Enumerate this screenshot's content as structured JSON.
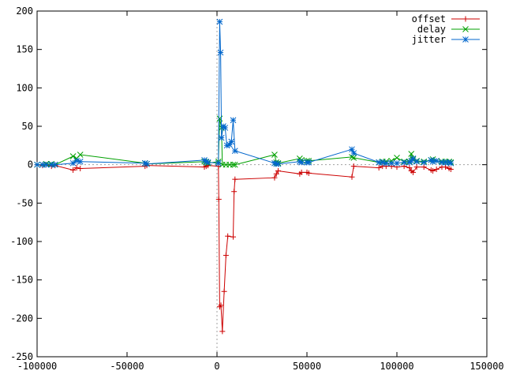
{
  "chart_data": {
    "type": "line",
    "title": "",
    "xlabel": "",
    "ylabel": "",
    "xlim": [
      -100000,
      150000
    ],
    "ylim": [
      -250,
      200
    ],
    "x_ticks": [
      -100000,
      -50000,
      0,
      50000,
      100000,
      150000
    ],
    "y_ticks": [
      -250,
      -200,
      -150,
      -100,
      -50,
      0,
      50,
      100,
      150,
      200
    ],
    "x_tick_labels": [
      "-100000",
      "-50000",
      "0",
      "50000",
      "100000",
      "150000"
    ],
    "y_tick_labels": [
      "-250",
      "-200",
      "-150",
      "-100",
      "-50",
      "0",
      "50",
      "100",
      "150",
      "200"
    ],
    "zero_lines": true,
    "grid": false,
    "legend_position": "top-right",
    "series": [
      {
        "name": "offset",
        "color": "#cc0000",
        "marker": "plus",
        "points": [
          [
            -100000,
            0
          ],
          [
            -97000,
            -1
          ],
          [
            -95000,
            0
          ],
          [
            -92000,
            -2
          ],
          [
            -90000,
            -1
          ],
          [
            -80000,
            -7
          ],
          [
            -78000,
            -4
          ],
          [
            -76000,
            -5
          ],
          [
            -40000,
            -2
          ],
          [
            -39000,
            -1
          ],
          [
            -7000,
            -3
          ],
          [
            -6000,
            -2
          ],
          [
            -5000,
            -1
          ],
          [
            800,
            -2
          ],
          [
            1000,
            -45
          ],
          [
            1500,
            -185
          ],
          [
            2200,
            -183
          ],
          [
            3000,
            -217
          ],
          [
            4000,
            -165
          ],
          [
            5000,
            -118
          ],
          [
            6000,
            -93
          ],
          [
            9000,
            -94
          ],
          [
            9500,
            -35
          ],
          [
            10000,
            -19
          ],
          [
            32000,
            -17
          ],
          [
            33000,
            -12
          ],
          [
            34000,
            -8
          ],
          [
            46000,
            -12
          ],
          [
            47000,
            -10
          ],
          [
            50000,
            -10
          ],
          [
            51000,
            -11
          ],
          [
            75000,
            -16
          ],
          [
            76000,
            -2
          ],
          [
            90000,
            -4
          ],
          [
            92000,
            -2
          ],
          [
            94000,
            -2
          ],
          [
            97000,
            -2
          ],
          [
            100000,
            -3
          ],
          [
            104000,
            -2
          ],
          [
            107000,
            -4
          ],
          [
            108000,
            -8
          ],
          [
            109000,
            -10
          ],
          [
            111000,
            -3
          ],
          [
            115000,
            -3
          ],
          [
            119000,
            -7
          ],
          [
            120000,
            -8
          ],
          [
            122000,
            -6
          ],
          [
            125000,
            -3
          ],
          [
            127000,
            -3
          ],
          [
            129000,
            -5
          ],
          [
            130000,
            -6
          ]
        ]
      },
      {
        "name": "delay",
        "color": "#00a000",
        "marker": "cross",
        "points": [
          [
            -100000,
            0
          ],
          [
            -97000,
            0
          ],
          [
            -95000,
            1
          ],
          [
            -92000,
            1
          ],
          [
            -90000,
            0
          ],
          [
            -80000,
            11
          ],
          [
            -78000,
            8
          ],
          [
            -76000,
            13
          ],
          [
            -40000,
            2
          ],
          [
            -39000,
            1
          ],
          [
            -7000,
            4
          ],
          [
            -6000,
            3
          ],
          [
            -5000,
            2
          ],
          [
            800,
            4
          ],
          [
            1500,
            60
          ],
          [
            2500,
            48
          ],
          [
            3000,
            0
          ],
          [
            5000,
            0
          ],
          [
            7000,
            0
          ],
          [
            9000,
            0
          ],
          [
            10000,
            0
          ],
          [
            32000,
            13
          ],
          [
            33000,
            3
          ],
          [
            34000,
            2
          ],
          [
            46000,
            8
          ],
          [
            47000,
            6
          ],
          [
            50000,
            5
          ],
          [
            51000,
            5
          ],
          [
            75000,
            10
          ],
          [
            76000,
            9
          ],
          [
            90000,
            3
          ],
          [
            92000,
            4
          ],
          [
            94000,
            4
          ],
          [
            97000,
            5
          ],
          [
            100000,
            9
          ],
          [
            104000,
            4
          ],
          [
            107000,
            4
          ],
          [
            108000,
            14
          ],
          [
            109000,
            7
          ],
          [
            111000,
            5
          ],
          [
            115000,
            4
          ],
          [
            119000,
            6
          ],
          [
            120000,
            7
          ],
          [
            122000,
            5
          ],
          [
            125000,
            4
          ],
          [
            127000,
            4
          ],
          [
            129000,
            4
          ],
          [
            130000,
            3
          ]
        ]
      },
      {
        "name": "jitter",
        "color": "#0066cc",
        "marker": "star",
        "points": [
          [
            -100000,
            0
          ],
          [
            -97000,
            0
          ],
          [
            -95000,
            0
          ],
          [
            -92000,
            0
          ],
          [
            -90000,
            0
          ],
          [
            -80000,
            2
          ],
          [
            -78000,
            5
          ],
          [
            -76000,
            4
          ],
          [
            -40000,
            2
          ],
          [
            -39000,
            1
          ],
          [
            -7000,
            6
          ],
          [
            -6000,
            4
          ],
          [
            -5000,
            3
          ],
          [
            800,
            2
          ],
          [
            1500,
            186
          ],
          [
            2000,
            146
          ],
          [
            2500,
            35
          ],
          [
            3500,
            50
          ],
          [
            4500,
            48
          ],
          [
            5500,
            25
          ],
          [
            7000,
            26
          ],
          [
            8000,
            30
          ],
          [
            9000,
            58
          ],
          [
            10000,
            18
          ],
          [
            32000,
            2
          ],
          [
            33000,
            1
          ],
          [
            34000,
            1
          ],
          [
            46000,
            4
          ],
          [
            47000,
            3
          ],
          [
            50000,
            3
          ],
          [
            51000,
            3
          ],
          [
            75000,
            20
          ],
          [
            76000,
            15
          ],
          [
            90000,
            3
          ],
          [
            92000,
            3
          ],
          [
            94000,
            2
          ],
          [
            97000,
            2
          ],
          [
            100000,
            2
          ],
          [
            104000,
            3
          ],
          [
            107000,
            3
          ],
          [
            108000,
            5
          ],
          [
            109000,
            8
          ],
          [
            111000,
            4
          ],
          [
            115000,
            3
          ],
          [
            119000,
            6
          ],
          [
            120000,
            4
          ],
          [
            122000,
            5
          ],
          [
            125000,
            3
          ],
          [
            127000,
            3
          ],
          [
            129000,
            3
          ],
          [
            130000,
            2
          ]
        ]
      }
    ]
  }
}
